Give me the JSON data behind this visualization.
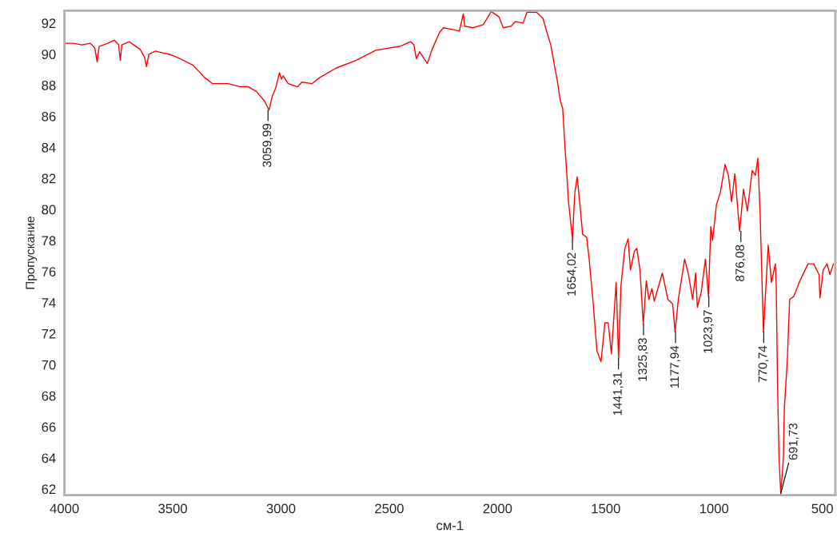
{
  "chart_data": {
    "type": "line",
    "xlabel": "см-1",
    "ylabel": "Пропускание",
    "xlim": [
      4000,
      440
    ],
    "ylim": [
      61.6,
      92.8
    ],
    "xticks": [
      4000,
      3500,
      3000,
      2500,
      2000,
      1500,
      1000,
      500
    ],
    "yticks": [
      62,
      64,
      66,
      68,
      70,
      72,
      74,
      76,
      78,
      80,
      82,
      84,
      86,
      88,
      90,
      92
    ],
    "grid": false,
    "legend": false,
    "marker": "none",
    "line_style": "solid",
    "series": [
      {
        "color": "#ff0000",
        "x": [
          4000,
          3960,
          3920,
          3880,
          3860,
          3849,
          3840,
          3800,
          3770,
          3750,
          3742,
          3735,
          3700,
          3680,
          3650,
          3630,
          3621,
          3610,
          3580,
          3550,
          3518,
          3480,
          3450,
          3408,
          3380,
          3353,
          3316,
          3280,
          3243,
          3188,
          3151,
          3114,
          3077,
          3055,
          3040,
          3025,
          3007,
          2998,
          2990,
          2967,
          2923,
          2904,
          2857,
          2820,
          2746,
          2654,
          2562,
          2452,
          2401,
          2386,
          2375,
          2360,
          2324,
          2305,
          2268,
          2250,
          2213,
          2176,
          2158,
          2152,
          2114,
          2066,
          2029,
          1993,
          1974,
          1937,
          1918,
          1882,
          1864,
          1820,
          1790,
          1772,
          1754,
          1735,
          1724,
          1710,
          1699,
          1688,
          1680,
          1673,
          1654,
          1643,
          1632,
          1618,
          1607,
          1588,
          1577,
          1559,
          1541,
          1522,
          1504,
          1489,
          1474,
          1452,
          1441,
          1430,
          1412,
          1397,
          1386,
          1368,
          1357,
          1342,
          1327,
          1313,
          1301,
          1287,
          1276,
          1239,
          1213,
          1191,
          1180,
          1165,
          1136,
          1118,
          1099,
          1085,
          1077,
          1059,
          1040,
          1026,
          1015,
          1007,
          989,
          971,
          949,
          934,
          919,
          904,
          882,
          864,
          846,
          824,
          809,
          798,
          787,
          772,
          750,
          735,
          717,
          713,
          706,
          700,
          692,
          680,
          675,
          662,
          651,
          632,
          607,
          566,
          540,
          515,
          511,
          496,
          478,
          465,
          449
        ],
        "values": [
          90.7,
          90.7,
          90.6,
          90.7,
          90.4,
          89.5,
          90.5,
          90.7,
          90.9,
          90.6,
          89.6,
          90.6,
          90.8,
          90.6,
          90.3,
          89.8,
          89.2,
          90.0,
          90.2,
          90.1,
          90.0,
          89.8,
          89.6,
          89.3,
          88.9,
          88.5,
          88.1,
          88.1,
          88.1,
          87.9,
          87.9,
          87.6,
          87.0,
          86.4,
          87.3,
          87.8,
          88.8,
          88.4,
          88.6,
          88.1,
          87.9,
          88.2,
          88.1,
          88.5,
          89.1,
          89.6,
          90.25,
          90.5,
          90.8,
          90.6,
          89.7,
          90.15,
          89.4,
          90.2,
          91.4,
          91.7,
          91.6,
          91.5,
          92.6,
          91.8,
          91.7,
          91.9,
          92.75,
          92.4,
          91.7,
          91.8,
          92.1,
          92.0,
          92.7,
          92.7,
          92.3,
          91.4,
          90.6,
          89.1,
          88.3,
          87.0,
          86.5,
          83.9,
          82.3,
          80.6,
          78.1,
          81.1,
          82.1,
          80.1,
          78.4,
          78.2,
          76.8,
          74.1,
          70.9,
          70.2,
          72.7,
          72.7,
          70.7,
          75.3,
          70.4,
          75.1,
          77.5,
          78.1,
          76.1,
          77.3,
          77.5,
          76.1,
          72.6,
          75.4,
          74.2,
          74.9,
          74.1,
          75.9,
          74.2,
          73.9,
          72.1,
          74.2,
          76.8,
          75.8,
          74.2,
          75.9,
          73.7,
          74.7,
          76.8,
          74.4,
          78.9,
          78.0,
          80.3,
          81.1,
          82.9,
          82.2,
          80.5,
          82.3,
          78.6,
          81.3,
          79.9,
          82.5,
          82.2,
          83.3,
          79.6,
          72.1,
          77.7,
          75.3,
          76.5,
          75.1,
          68.1,
          64.0,
          61.7,
          64.0,
          67.3,
          70.2,
          74.2,
          74.4,
          75.3,
          76.5,
          76.5,
          75.8,
          74.3,
          76.1,
          76.5,
          75.8,
          76.5
        ]
      }
    ],
    "annotations": [
      {
        "text": "3059,99",
        "x": 3059.99,
        "y": 86.4
      },
      {
        "text": "1654,02",
        "x": 1654.02,
        "y": 78.1
      },
      {
        "text": "1441,31",
        "x": 1441.31,
        "y": 70.4
      },
      {
        "text": "1325,83",
        "x": 1325.83,
        "y": 72.6
      },
      {
        "text": "1177,94",
        "x": 1177.94,
        "y": 72.1
      },
      {
        "text": "1023,97",
        "x": 1023.97,
        "y": 74.4
      },
      {
        "text": "876,08",
        "x": 876.08,
        "y": 78.6
      },
      {
        "text": "770,74",
        "x": 770.74,
        "y": 72.1
      },
      {
        "text": "691,73",
        "x": 691.73,
        "y": 61.7
      }
    ]
  }
}
